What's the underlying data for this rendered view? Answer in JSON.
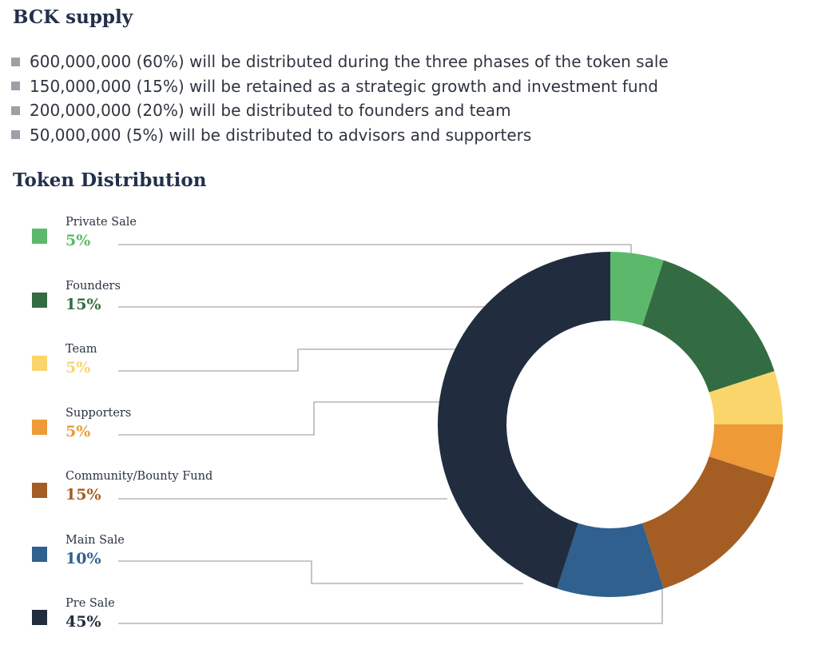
{
  "supply": {
    "title": "BCK supply",
    "items": [
      "600,000,000 (60%) will be distributed during the three phases of the token sale",
      "150,000,000 (15%) will be retained as a strategic growth and investment fund",
      "200,000,000 (20%) will be distributed to founders and team",
      "50,000,000 (5%) will be distributed to advisors and supporters"
    ]
  },
  "chart_data": {
    "type": "pie",
    "variant": "donut",
    "title": "Token Distribution",
    "categories": [
      "Private Sale",
      "Founders",
      "Team",
      "Supporters",
      "Community/Bounty Fund",
      "Main Sale",
      "Pre Sale"
    ],
    "values": [
      5,
      15,
      5,
      5,
      15,
      10,
      45
    ],
    "value_labels": [
      "5%",
      "15%",
      "5%",
      "5%",
      "15%",
      "10%",
      "45%"
    ],
    "colors": [
      "#5cb96c",
      "#336c42",
      "#f9d56b",
      "#ee9a36",
      "#a45d22",
      "#30608f",
      "#212d3f"
    ],
    "legend_position": "left"
  }
}
